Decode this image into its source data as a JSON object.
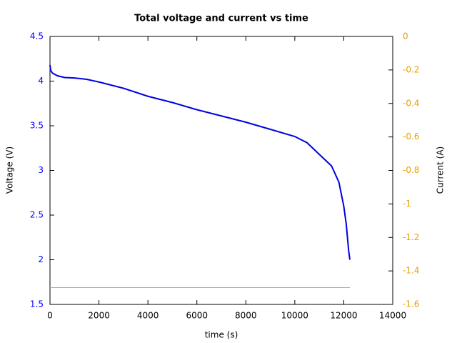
{
  "chart_data": {
    "type": "line",
    "title": "Total voltage and current vs time",
    "x_label": "time (s)",
    "y_label": "Voltage (V)",
    "y2_label": "Current (A)",
    "xlim": [
      0,
      14000
    ],
    "xticks": [
      0,
      2000,
      4000,
      6000,
      8000,
      10000,
      12000,
      14000
    ],
    "ylim": [
      1.5,
      4.5
    ],
    "yticks": [
      1.5,
      2,
      2.5,
      3,
      3.5,
      4,
      4.5
    ],
    "y2lim": [
      -1.6,
      0
    ],
    "y2ticks": [
      -1.6,
      -1.4,
      -1.2,
      -1,
      -0.8,
      -0.6,
      -0.4,
      -0.2,
      0
    ],
    "y_color": "#0000ff",
    "y2_color": "#e6a000",
    "series": [
      {
        "color": "#0000e0",
        "x": [
          0,
          30,
          100,
          300,
          600,
          1000,
          1500,
          2000,
          3000,
          4000,
          5000,
          6000,
          7000,
          8000,
          9000,
          10000,
          10500,
          11000,
          11500,
          11800,
          12000,
          12100,
          12200,
          12250
        ],
        "values": [
          4.18,
          4.12,
          4.09,
          4.06,
          4.04,
          4.035,
          4.02,
          3.99,
          3.92,
          3.83,
          3.76,
          3.68,
          3.61,
          3.54,
          3.46,
          3.38,
          3.31,
          3.18,
          3.05,
          2.87,
          2.6,
          2.4,
          2.1,
          2.0
        ]
      },
      {
        "color": "#e6a020",
        "axis": "y2",
        "x": [
          0,
          12250
        ],
        "values": [
          -1.5,
          -1.5
        ]
      }
    ]
  }
}
